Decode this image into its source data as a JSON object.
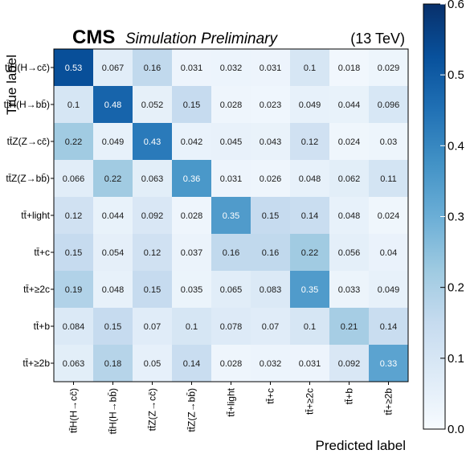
{
  "header": {
    "experiment": "CMS",
    "subtitle": "Simulation Preliminary",
    "energy": "(13 TeV)"
  },
  "chart_data": {
    "type": "heatmap",
    "xlabel": "Predicted label",
    "ylabel": "True label",
    "rows": [
      "tt̄H(H→cc̄)",
      "tt̄H(H→bb̄)",
      "tt̄Z(Z→cc̄)",
      "tt̄Z(Z→bb̄)",
      "tt̄+light",
      "tt̄+c",
      "tt̄+≥2c",
      "tt̄+b",
      "tt̄+≥2b"
    ],
    "columns": [
      "tt̄H(H→cc̄)",
      "tt̄H(H→bb̄)",
      "tt̄Z(Z→cc̄)",
      "tt̄Z(Z→bb̄)",
      "tt̄+light",
      "tt̄+c",
      "tt̄+≥2c",
      "tt̄+b",
      "tt̄+≥2b"
    ],
    "values": [
      [
        0.53,
        0.067,
        0.16,
        0.031,
        0.032,
        0.031,
        0.1,
        0.018,
        0.029
      ],
      [
        0.1,
        0.48,
        0.052,
        0.15,
        0.028,
        0.023,
        0.049,
        0.044,
        0.096
      ],
      [
        0.22,
        0.049,
        0.43,
        0.042,
        0.045,
        0.043,
        0.12,
        0.024,
        0.03
      ],
      [
        0.066,
        0.22,
        0.063,
        0.36,
        0.031,
        0.026,
        0.048,
        0.062,
        0.11
      ],
      [
        0.12,
        0.044,
        0.092,
        0.028,
        0.35,
        0.15,
        0.14,
        0.048,
        0.024
      ],
      [
        0.15,
        0.054,
        0.12,
        0.037,
        0.16,
        0.16,
        0.22,
        0.056,
        0.04
      ],
      [
        0.19,
        0.048,
        0.15,
        0.035,
        0.065,
        0.083,
        0.35,
        0.033,
        0.049
      ],
      [
        0.084,
        0.15,
        0.07,
        0.1,
        0.078,
        0.07,
        0.1,
        0.21,
        0.14
      ],
      [
        0.063,
        0.18,
        0.05,
        0.14,
        0.028,
        0.032,
        0.031,
        0.092,
        0.33
      ]
    ],
    "colorbar": {
      "range": [
        0.0,
        0.6
      ],
      "ticks": [
        "0.0",
        "0.1",
        "0.2",
        "0.3",
        "0.4",
        "0.5",
        "0.6"
      ],
      "colormap": "Blues",
      "color_low": "#f7fbff",
      "color_high": "#08306b"
    },
    "grid": false
  }
}
